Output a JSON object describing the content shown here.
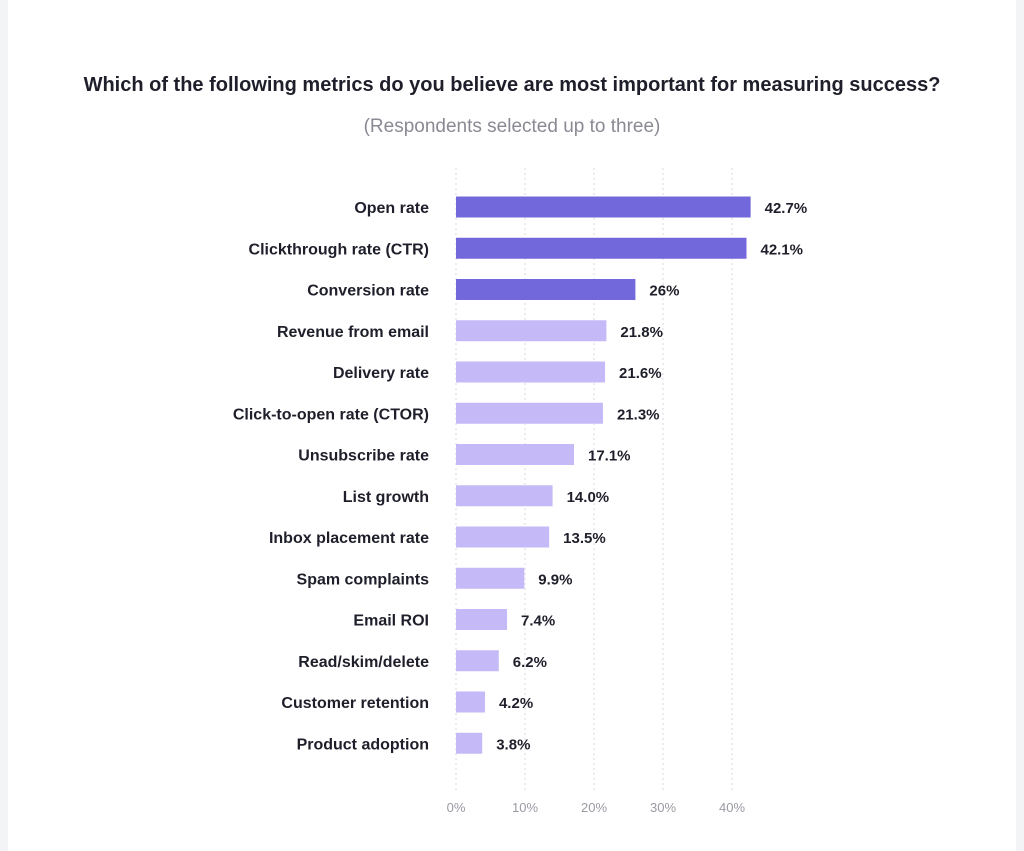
{
  "chart_data": {
    "type": "bar",
    "orientation": "horizontal",
    "title": "Which of the following metrics do you believe are most important for measuring success?",
    "subtitle": "(Respondents selected up to three)",
    "categories": [
      "Open rate",
      "Clickthrough rate (CTR)",
      "Conversion rate",
      "Revenue from email",
      "Delivery rate",
      "Click-to-open rate (CTOR)",
      "Unsubscribe rate",
      "List growth",
      "Inbox placement rate",
      "Spam complaints",
      "Email ROI",
      "Read/skim/delete",
      "Customer retention",
      "Product adoption"
    ],
    "values": [
      42.7,
      42.1,
      26,
      21.8,
      21.6,
      21.3,
      17.1,
      14.0,
      13.5,
      9.9,
      7.4,
      6.2,
      4.2,
      3.8
    ],
    "value_labels": [
      "42.7%",
      "42.1%",
      "26%",
      "21.8%",
      "21.6%",
      "21.3%",
      "17.1%",
      "14.0%",
      "13.5%",
      "9.9%",
      "7.4%",
      "6.2%",
      "4.2%",
      "3.8%"
    ],
    "highlight_top": 3,
    "xlim": [
      0,
      45
    ],
    "xticks": [
      0,
      10,
      20,
      30,
      40
    ],
    "xtick_labels": [
      "0%",
      "10%",
      "20%",
      "30%",
      "40%"
    ],
    "grid": true,
    "colors": {
      "highlight": "#7367dc",
      "normal": "#c5baf7",
      "grid": "#d9d9de"
    }
  }
}
